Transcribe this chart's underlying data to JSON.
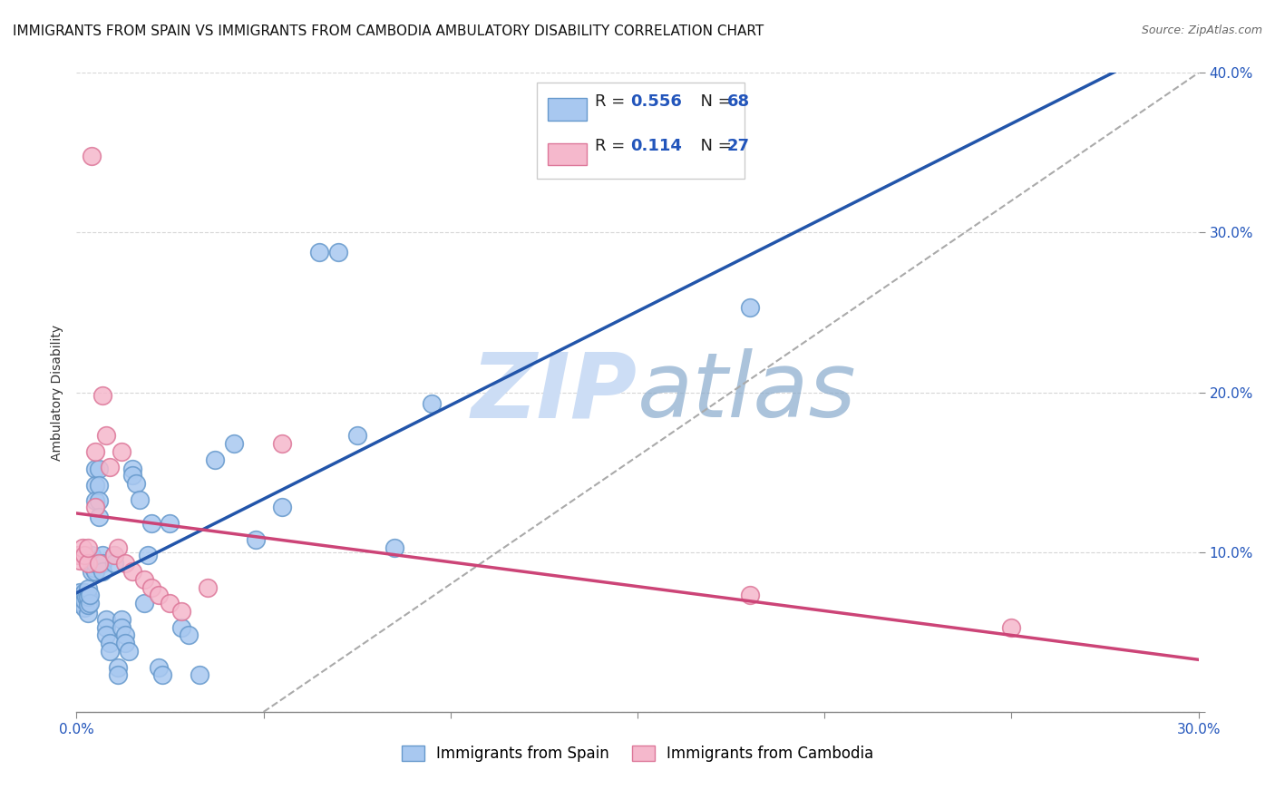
{
  "title": "IMMIGRANTS FROM SPAIN VS IMMIGRANTS FROM CAMBODIA AMBULATORY DISABILITY CORRELATION CHART",
  "source": "Source: ZipAtlas.com",
  "ylabel": "Ambulatory Disability",
  "xlim": [
    0.0,
    0.3
  ],
  "ylim": [
    0.0,
    0.4
  ],
  "spain_color": "#a8c8f0",
  "cambodia_color": "#f5b8cc",
  "spain_edge_color": "#6699cc",
  "cambodia_edge_color": "#dd7799",
  "regression_spain_color": "#2255aa",
  "regression_cambodia_color": "#cc4477",
  "dashed_line_color": "#aaaaaa",
  "R_spain": 0.556,
  "N_spain": 68,
  "R_cambodia": 0.114,
  "N_cambodia": 27,
  "spain_x": [
    0.0005,
    0.001,
    0.001,
    0.0015,
    0.0015,
    0.002,
    0.002,
    0.002,
    0.0025,
    0.003,
    0.003,
    0.003,
    0.003,
    0.0035,
    0.0035,
    0.004,
    0.004,
    0.004,
    0.0045,
    0.005,
    0.005,
    0.005,
    0.005,
    0.005,
    0.006,
    0.006,
    0.006,
    0.006,
    0.007,
    0.007,
    0.007,
    0.008,
    0.008,
    0.008,
    0.009,
    0.009,
    0.01,
    0.01,
    0.011,
    0.011,
    0.012,
    0.012,
    0.013,
    0.013,
    0.014,
    0.015,
    0.015,
    0.016,
    0.017,
    0.018,
    0.019,
    0.02,
    0.022,
    0.023,
    0.025,
    0.028,
    0.03,
    0.033,
    0.037,
    0.042,
    0.048,
    0.055,
    0.065,
    0.07,
    0.075,
    0.085,
    0.095,
    0.18
  ],
  "spain_y": [
    0.068,
    0.072,
    0.075,
    0.068,
    0.073,
    0.065,
    0.07,
    0.075,
    0.072,
    0.062,
    0.067,
    0.072,
    0.077,
    0.068,
    0.073,
    0.088,
    0.093,
    0.098,
    0.09,
    0.152,
    0.142,
    0.132,
    0.088,
    0.093,
    0.152,
    0.142,
    0.132,
    0.122,
    0.098,
    0.093,
    0.088,
    0.058,
    0.053,
    0.048,
    0.043,
    0.038,
    0.098,
    0.093,
    0.028,
    0.023,
    0.058,
    0.053,
    0.048,
    0.043,
    0.038,
    0.152,
    0.148,
    0.143,
    0.133,
    0.068,
    0.098,
    0.118,
    0.028,
    0.023,
    0.118,
    0.053,
    0.048,
    0.023,
    0.158,
    0.168,
    0.108,
    0.128,
    0.288,
    0.288,
    0.173,
    0.103,
    0.193,
    0.253
  ],
  "cambodia_x": [
    0.0005,
    0.001,
    0.0015,
    0.002,
    0.003,
    0.003,
    0.004,
    0.005,
    0.005,
    0.006,
    0.007,
    0.008,
    0.009,
    0.01,
    0.011,
    0.012,
    0.013,
    0.015,
    0.018,
    0.02,
    0.022,
    0.025,
    0.028,
    0.035,
    0.055,
    0.18,
    0.25
  ],
  "cambodia_y": [
    0.098,
    0.095,
    0.103,
    0.098,
    0.093,
    0.103,
    0.348,
    0.163,
    0.128,
    0.093,
    0.198,
    0.173,
    0.153,
    0.098,
    0.103,
    0.163,
    0.093,
    0.088,
    0.083,
    0.078,
    0.073,
    0.068,
    0.063,
    0.078,
    0.168,
    0.073,
    0.053
  ],
  "legend_spain_label": "Immigrants from Spain",
  "legend_cambodia_label": "Immigrants from Cambodia",
  "background_color": "#ffffff",
  "grid_color": "#cccccc",
  "watermark_color": "#ccddf5",
  "title_fontsize": 11,
  "axis_label_fontsize": 10,
  "tick_fontsize": 11,
  "legend_fontsize": 12
}
